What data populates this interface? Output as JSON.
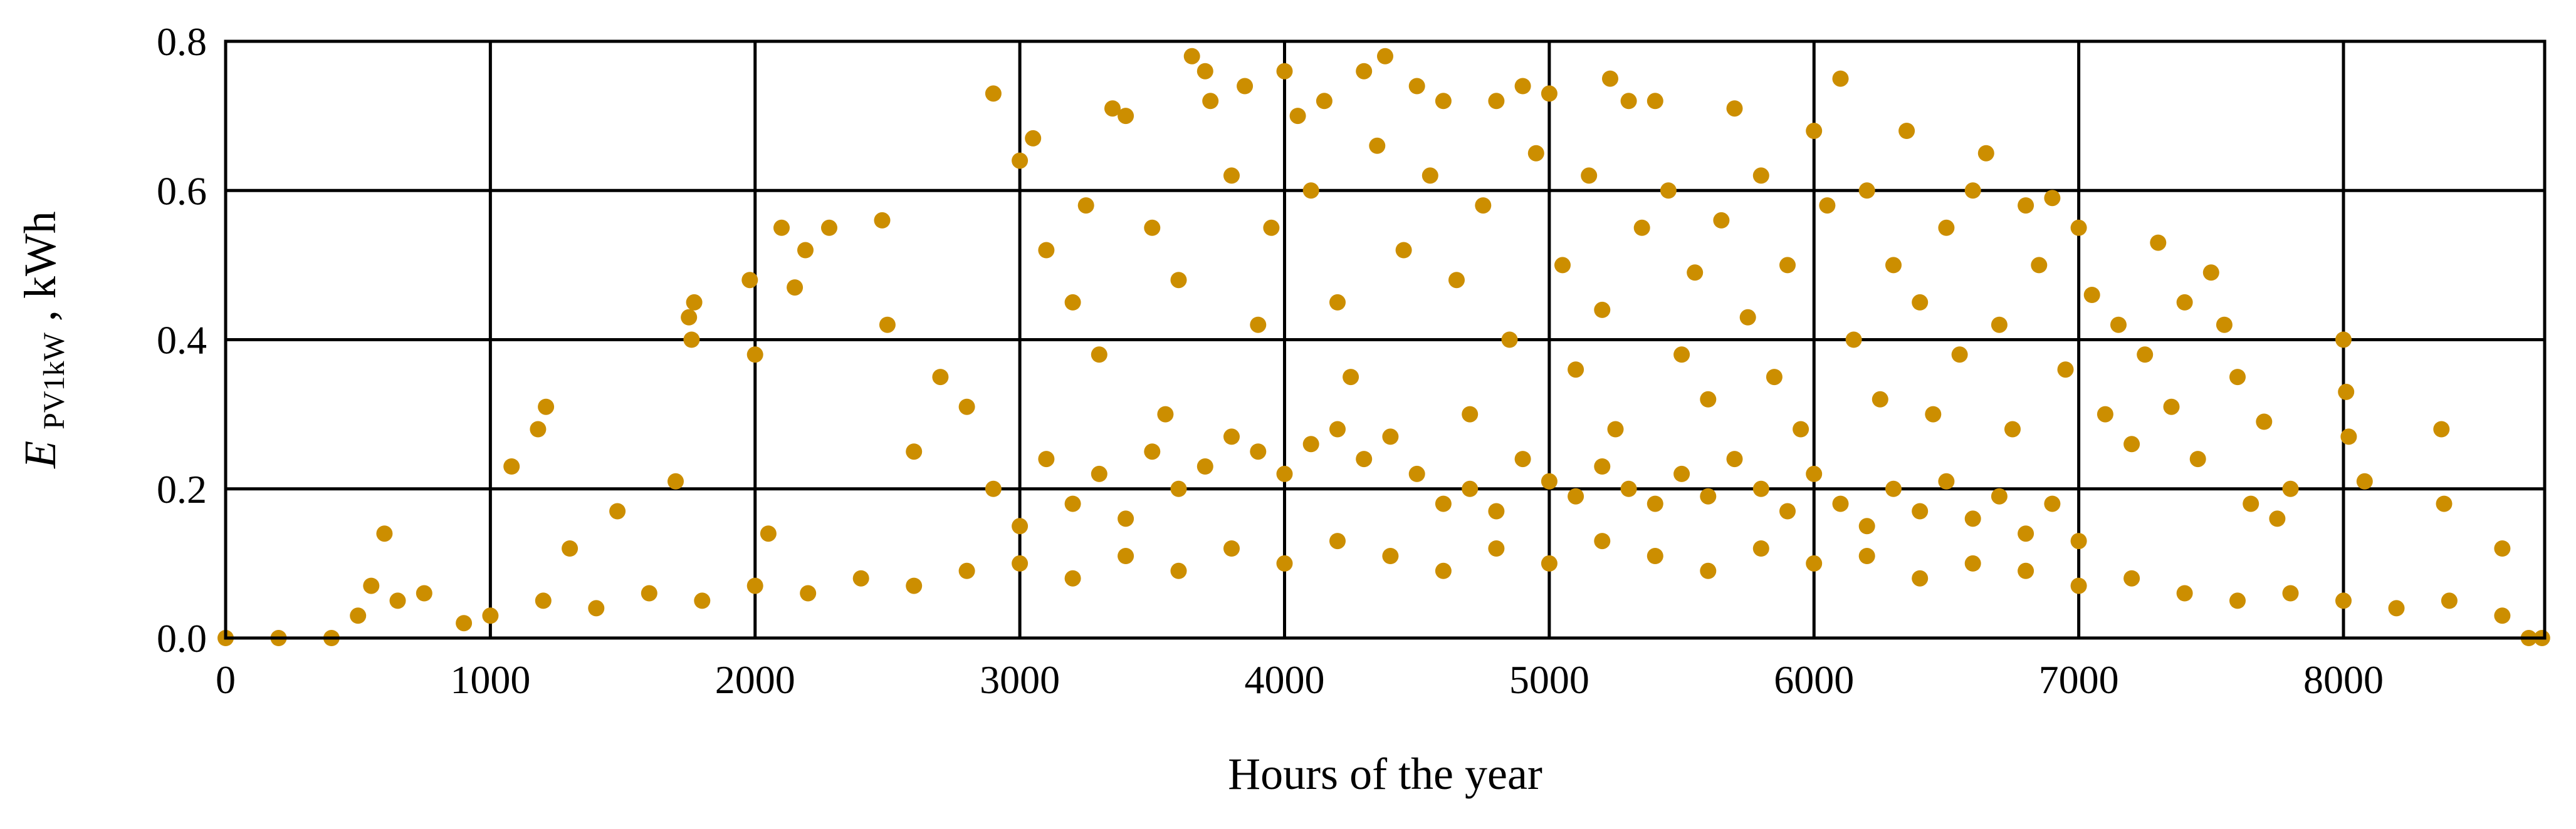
{
  "chart_data": {
    "type": "scatter",
    "title": "",
    "xlabel": "Hours of the year",
    "ylabel": {
      "main": "E",
      "subscript": "PV1kW",
      "suffix": ", kWh"
    },
    "xlim": [
      0,
      8760
    ],
    "ylim": [
      0,
      0.8
    ],
    "x_ticks": [
      0,
      1000,
      2000,
      3000,
      4000,
      5000,
      6000,
      7000,
      8000
    ],
    "y_ticks": [
      0.0,
      0.2,
      0.4,
      0.6,
      0.8
    ],
    "x_tick_labels": [
      "0",
      "1000",
      "2000",
      "3000",
      "4000",
      "5000",
      "6000",
      "7000",
      "8000"
    ],
    "y_tick_labels": [
      "0.0",
      "0.2",
      "0.4",
      "0.6",
      "0.8"
    ],
    "grid": true,
    "legend": "none",
    "marker_color": "#cc8e00",
    "series": [
      {
        "values": [
          [
            600,
            0.14
          ],
          [
            1080,
            0.23
          ],
          [
            1180,
            0.28
          ],
          [
            1210,
            0.31
          ],
          [
            1300,
            0.12
          ],
          [
            1480,
            0.17
          ],
          [
            1700,
            0.21
          ],
          [
            1750,
            0.43
          ],
          [
            1770,
            0.45
          ],
          [
            1760,
            0.4
          ],
          [
            1980,
            0.48
          ],
          [
            2000,
            0.38
          ],
          [
            2100,
            0.55
          ],
          [
            2150,
            0.47
          ],
          [
            2280,
            0.55
          ],
          [
            2190,
            0.52
          ],
          [
            2480,
            0.56
          ],
          [
            2500,
            0.42
          ],
          [
            2900,
            0.73
          ],
          [
            3000,
            0.64
          ],
          [
            3050,
            0.67
          ],
          [
            3350,
            0.71
          ],
          [
            3400,
            0.7
          ],
          [
            3650,
            0.78
          ],
          [
            3700,
            0.76
          ],
          [
            3720,
            0.72
          ],
          [
            3850,
            0.74
          ],
          [
            4000,
            0.76
          ],
          [
            4050,
            0.7
          ],
          [
            4150,
            0.72
          ],
          [
            4300,
            0.76
          ],
          [
            4380,
            0.78
          ],
          [
            4500,
            0.74
          ],
          [
            4600,
            0.72
          ],
          [
            4800,
            0.72
          ],
          [
            4900,
            0.74
          ],
          [
            5000,
            0.73
          ],
          [
            5230,
            0.75
          ],
          [
            5300,
            0.72
          ],
          [
            5400,
            0.72
          ],
          [
            5700,
            0.71
          ],
          [
            6100,
            0.75
          ],
          [
            6000,
            0.68
          ],
          [
            6350,
            0.68
          ],
          [
            6650,
            0.65
          ],
          [
            6800,
            0.58
          ],
          [
            6900,
            0.59
          ],
          [
            7000,
            0.55
          ],
          [
            7300,
            0.53
          ],
          [
            7500,
            0.49
          ],
          [
            7550,
            0.42
          ],
          [
            7700,
            0.29
          ],
          [
            7800,
            0.2
          ],
          [
            8000,
            0.4
          ],
          [
            8010,
            0.33
          ],
          [
            8020,
            0.27
          ],
          [
            8080,
            0.21
          ],
          [
            8370,
            0.28
          ],
          [
            8380,
            0.18
          ],
          [
            8600,
            0.12
          ],
          [
            2050,
            0.14
          ],
          [
            2600,
            0.25
          ],
          [
            2700,
            0.35
          ],
          [
            2800,
            0.31
          ],
          [
            3100,
            0.52
          ],
          [
            3200,
            0.45
          ],
          [
            3250,
            0.58
          ],
          [
            3300,
            0.38
          ],
          [
            3500,
            0.55
          ],
          [
            3550,
            0.3
          ],
          [
            3600,
            0.48
          ],
          [
            3800,
            0.62
          ],
          [
            3900,
            0.42
          ],
          [
            3950,
            0.55
          ],
          [
            4100,
            0.6
          ],
          [
            4200,
            0.45
          ],
          [
            4250,
            0.35
          ],
          [
            4350,
            0.66
          ],
          [
            4450,
            0.52
          ],
          [
            4550,
            0.62
          ],
          [
            4650,
            0.48
          ],
          [
            4700,
            0.3
          ],
          [
            4750,
            0.58
          ],
          [
            4850,
            0.4
          ],
          [
            4950,
            0.65
          ],
          [
            5050,
            0.5
          ],
          [
            5100,
            0.36
          ],
          [
            5150,
            0.62
          ],
          [
            5200,
            0.44
          ],
          [
            5250,
            0.28
          ],
          [
            5350,
            0.55
          ],
          [
            5450,
            0.6
          ],
          [
            5500,
            0.38
          ],
          [
            5550,
            0.49
          ],
          [
            5600,
            0.32
          ],
          [
            5650,
            0.56
          ],
          [
            5750,
            0.43
          ],
          [
            5800,
            0.62
          ],
          [
            5850,
            0.35
          ],
          [
            5900,
            0.5
          ],
          [
            5950,
            0.28
          ],
          [
            6050,
            0.58
          ],
          [
            6150,
            0.4
          ],
          [
            6200,
            0.6
          ],
          [
            6250,
            0.32
          ],
          [
            6300,
            0.5
          ],
          [
            6400,
            0.45
          ],
          [
            6450,
            0.3
          ],
          [
            6500,
            0.55
          ],
          [
            6550,
            0.38
          ],
          [
            6600,
            0.6
          ],
          [
            6700,
            0.42
          ],
          [
            6750,
            0.28
          ],
          [
            6850,
            0.5
          ],
          [
            6950,
            0.36
          ],
          [
            7050,
            0.46
          ],
          [
            7100,
            0.3
          ],
          [
            7150,
            0.42
          ],
          [
            7200,
            0.26
          ],
          [
            7250,
            0.38
          ],
          [
            7350,
            0.31
          ],
          [
            7400,
            0.45
          ],
          [
            7450,
            0.24
          ],
          [
            7600,
            0.35
          ],
          [
            7650,
            0.18
          ],
          [
            7750,
            0.16
          ],
          [
            2900,
            0.2
          ],
          [
            3000,
            0.15
          ],
          [
            3100,
            0.24
          ],
          [
            3200,
            0.18
          ],
          [
            3300,
            0.22
          ],
          [
            3400,
            0.16
          ],
          [
            3500,
            0.25
          ],
          [
            3600,
            0.2
          ],
          [
            3700,
            0.23
          ],
          [
            3800,
            0.27
          ],
          [
            3900,
            0.25
          ],
          [
            4000,
            0.22
          ],
          [
            4100,
            0.26
          ],
          [
            4200,
            0.28
          ],
          [
            4300,
            0.24
          ],
          [
            4400,
            0.27
          ],
          [
            4500,
            0.22
          ],
          [
            4600,
            0.18
          ],
          [
            4700,
            0.2
          ],
          [
            4800,
            0.17
          ],
          [
            4900,
            0.24
          ],
          [
            5000,
            0.21
          ],
          [
            5100,
            0.19
          ],
          [
            5200,
            0.23
          ],
          [
            5300,
            0.2
          ],
          [
            5400,
            0.18
          ],
          [
            5500,
            0.22
          ],
          [
            5600,
            0.19
          ],
          [
            5700,
            0.24
          ],
          [
            5800,
            0.2
          ],
          [
            5900,
            0.17
          ],
          [
            6000,
            0.22
          ],
          [
            6100,
            0.18
          ],
          [
            6200,
            0.15
          ],
          [
            6300,
            0.2
          ],
          [
            6400,
            0.17
          ],
          [
            6500,
            0.21
          ],
          [
            6600,
            0.16
          ],
          [
            6700,
            0.19
          ],
          [
            6800,
            0.14
          ],
          [
            6900,
            0.18
          ],
          [
            7000,
            0.13
          ],
          [
            3000,
            0.1
          ],
          [
            3200,
            0.08
          ],
          [
            3400,
            0.11
          ],
          [
            3600,
            0.09
          ],
          [
            3800,
            0.12
          ],
          [
            4000,
            0.1
          ],
          [
            4200,
            0.13
          ],
          [
            4400,
            0.11
          ],
          [
            4600,
            0.09
          ],
          [
            4800,
            0.12
          ],
          [
            5000,
            0.1
          ],
          [
            5200,
            0.13
          ],
          [
            5400,
            0.11
          ],
          [
            5600,
            0.09
          ],
          [
            5800,
            0.12
          ],
          [
            6000,
            0.1
          ],
          [
            6200,
            0.11
          ],
          [
            6400,
            0.08
          ],
          [
            6600,
            0.1
          ],
          [
            6800,
            0.09
          ],
          [
            7000,
            0.07
          ],
          [
            7200,
            0.08
          ],
          [
            7400,
            0.06
          ],
          [
            7600,
            0.05
          ],
          [
            1000,
            0.03
          ],
          [
            1200,
            0.05
          ],
          [
            1400,
            0.04
          ],
          [
            1600,
            0.06
          ],
          [
            1800,
            0.05
          ],
          [
            2000,
            0.07
          ],
          [
            2200,
            0.06
          ],
          [
            2400,
            0.08
          ],
          [
            2600,
            0.07
          ],
          [
            2800,
            0.09
          ],
          [
            7800,
            0.06
          ],
          [
            8000,
            0.05
          ],
          [
            8200,
            0.04
          ],
          [
            8400,
            0.05
          ],
          [
            8600,
            0.03
          ],
          [
            500,
            0.03
          ],
          [
            550,
            0.07
          ],
          [
            650,
            0.05
          ],
          [
            750,
            0.06
          ],
          [
            900,
            0.02
          ],
          [
            0,
            0.0
          ],
          [
            200,
            0.0
          ],
          [
            400,
            0.0
          ],
          [
            8700,
            0.0
          ],
          [
            8750,
            0.0
          ]
        ]
      }
    ]
  }
}
